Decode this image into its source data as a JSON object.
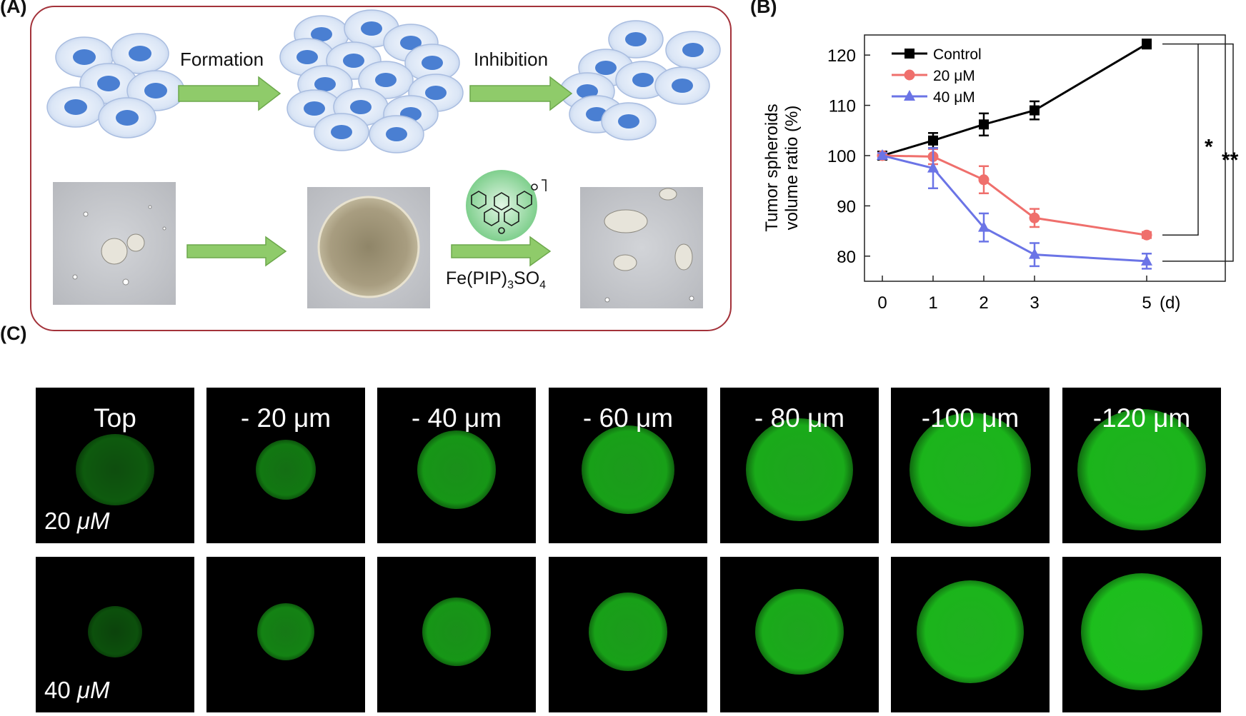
{
  "panels": {
    "a": "(A)",
    "b": "(B)",
    "c": "(C)"
  },
  "schematic": {
    "formation_label": "Formation",
    "inhibition_label": "Inhibition",
    "compound_prefix": "Fe(PIP)",
    "compound_sub1": "3",
    "compound_mid": "SO",
    "compound_sub2": "4"
  },
  "colors": {
    "frame": "#a3323a",
    "arrow": "#8fcb6a",
    "control": "#000000",
    "c20": "#ef6f6c",
    "c40": "#6b74e6",
    "fluorescence": "#1fd61f"
  },
  "chart_data": {
    "type": "line",
    "ylabel_line1": "Tumor spheroids",
    "ylabel_line2": "volume  ratio (%)",
    "x": [
      0,
      1,
      2,
      3,
      5
    ],
    "x_tick_labels": [
      "0",
      "1",
      "2",
      "3",
      "5"
    ],
    "x_unit": "(d)",
    "yticks": [
      80,
      90,
      100,
      110,
      120
    ],
    "ylim": [
      75,
      124
    ],
    "series": [
      {
        "name": "Control",
        "marker": "square",
        "color": "#000000",
        "values": [
          100,
          103,
          106.2,
          109,
          122.2
        ],
        "errors": [
          0.5,
          1.5,
          2.2,
          1.8,
          0.9
        ]
      },
      {
        "name": "20 μM",
        "marker": "circle",
        "color": "#ef6f6c",
        "values": [
          100,
          99.8,
          95.2,
          87.6,
          84.2
        ],
        "errors": [
          0.5,
          1.5,
          2.7,
          1.8,
          0.6
        ]
      },
      {
        "name": "40 μM",
        "marker": "triangle",
        "color": "#6b74e6",
        "values": [
          100,
          97.5,
          85.7,
          80.3,
          79
        ],
        "errors": [
          0.5,
          4,
          2.8,
          2.3,
          1.5
        ]
      }
    ],
    "significance": [
      "*",
      "**"
    ],
    "legend_position": "top-left"
  },
  "fluorescence_grid": {
    "depth_labels": [
      "Top",
      "- 20 μm",
      "- 40 μm",
      "- 60 μm",
      "- 80 μm",
      "-100 μm",
      "-120 μm"
    ],
    "rows": [
      {
        "conc_value": "20 ",
        "conc_unit": "μM"
      },
      {
        "conc_value": "40 ",
        "conc_unit": "μM"
      }
    ]
  }
}
